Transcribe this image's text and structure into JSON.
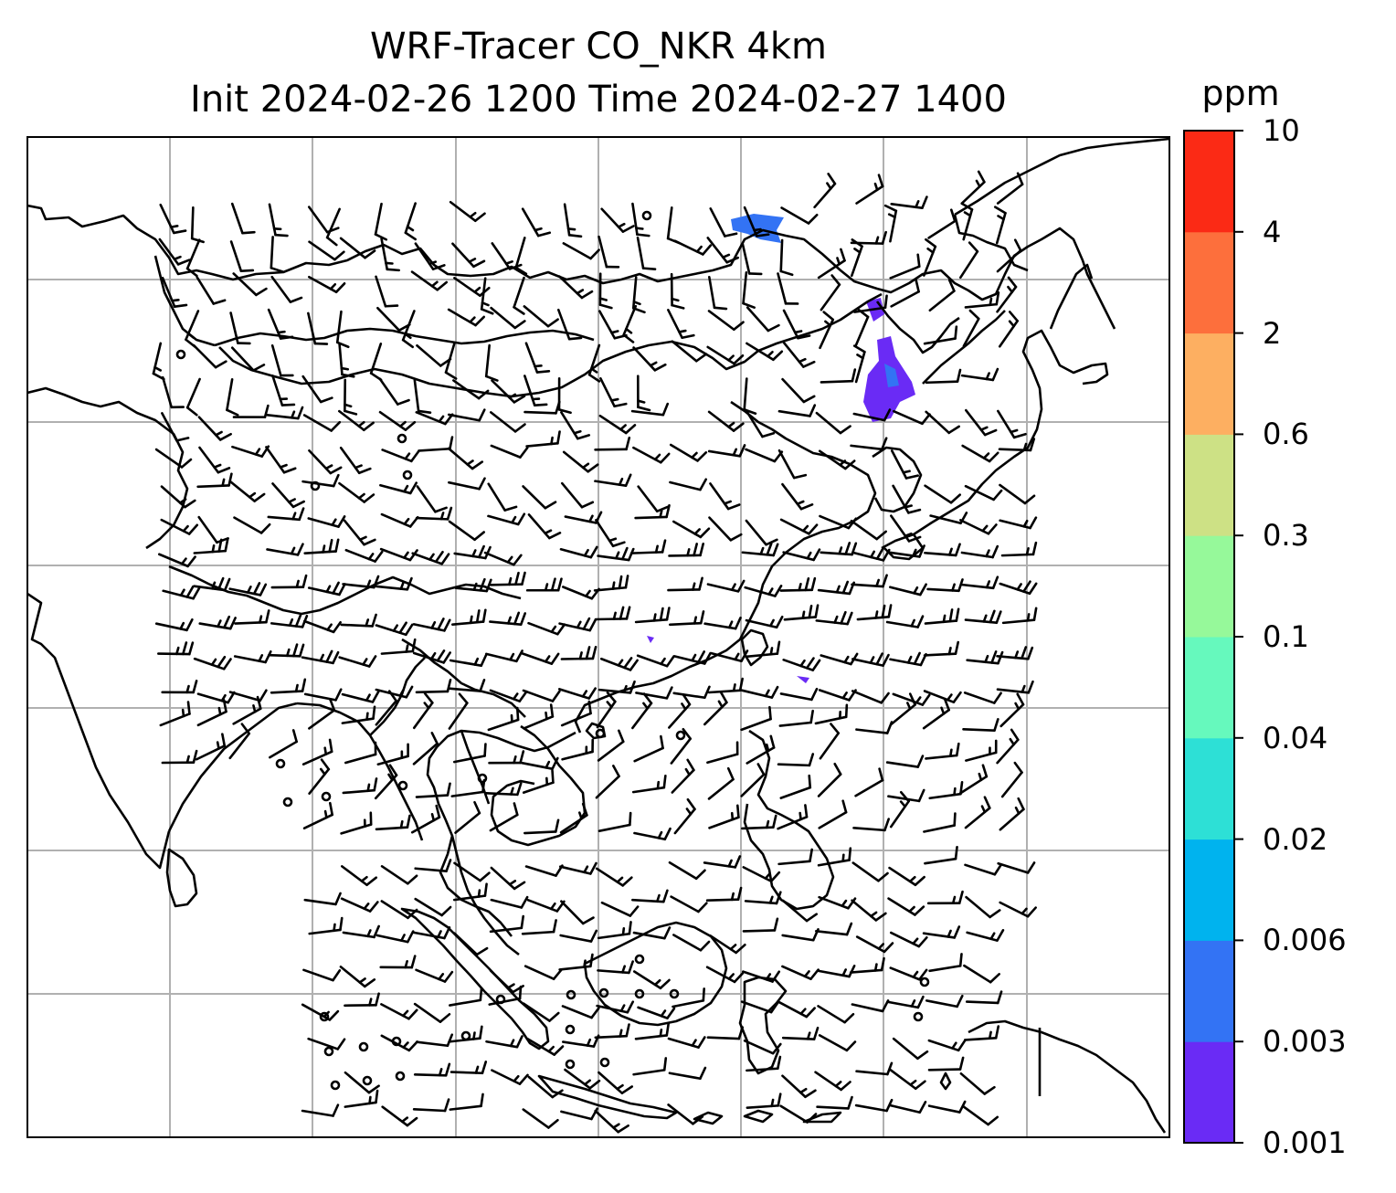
{
  "title": {
    "line1": "WRF-Tracer CO_NKR 4km",
    "line2": "Init 2024-02-26 1200 Time 2024-02-27 1400"
  },
  "colorbar": {
    "units": "ppm",
    "levels": [
      "0.001",
      "0.003",
      "0.006",
      "0.02",
      "0.04",
      "0.1",
      "0.3",
      "0.6",
      "2",
      "4",
      "10"
    ],
    "colors": [
      "#6a2bf5",
      "#3373f4",
      "#00b3ee",
      "#2de0d6",
      "#66f9bd",
      "#96f99a",
      "#cde185",
      "#fdaf61",
      "#fd6f3c",
      "#fb2a15"
    ]
  },
  "map": {
    "gridlines": true,
    "coastline_color": "#000000",
    "grid_color": "#b0b0b0",
    "tracer_color": "#6a2bf5",
    "tracer_color_2": "#3373f4"
  }
}
